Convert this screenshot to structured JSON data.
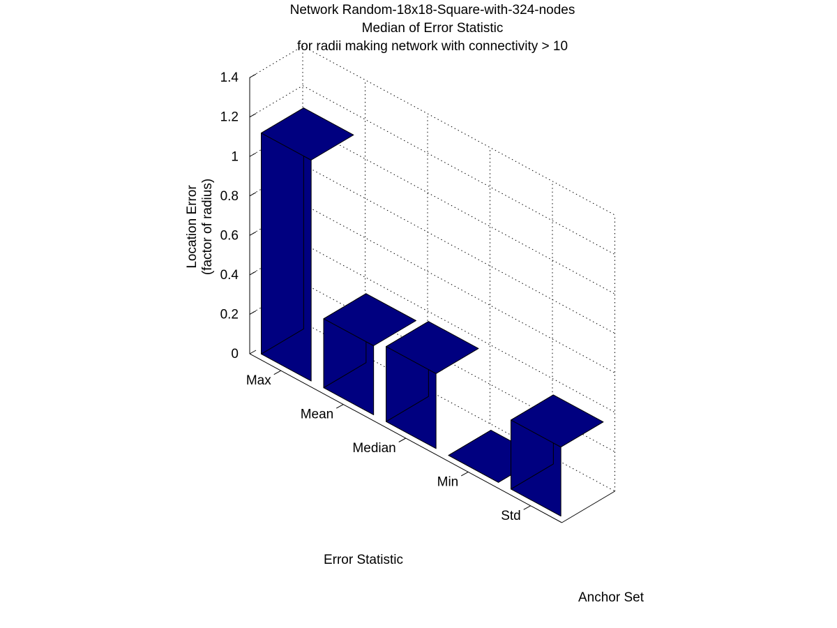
{
  "chart_data": {
    "type": "bar",
    "title": [
      "Network Random-18x18-Square-with-324-nodes",
      "Median of Error Statistic",
      "for radii making network with connectivity > 10"
    ],
    "xlabel": "Error Statistic",
    "ylabel": "Anchor Set",
    "zlabel": [
      "Location Error",
      "(factor of radius)"
    ],
    "categories": [
      "Max",
      "Mean",
      "Median",
      "Min",
      "Std"
    ],
    "values": [
      1.12,
      0.35,
      0.38,
      0.0,
      0.35
    ],
    "zlim": [
      0,
      1.4
    ],
    "zticks": [
      "0",
      "0.2",
      "0.4",
      "0.6",
      "0.8",
      "1",
      "1.2",
      "1.4"
    ],
    "grid": true,
    "bar_color": "#000080"
  }
}
